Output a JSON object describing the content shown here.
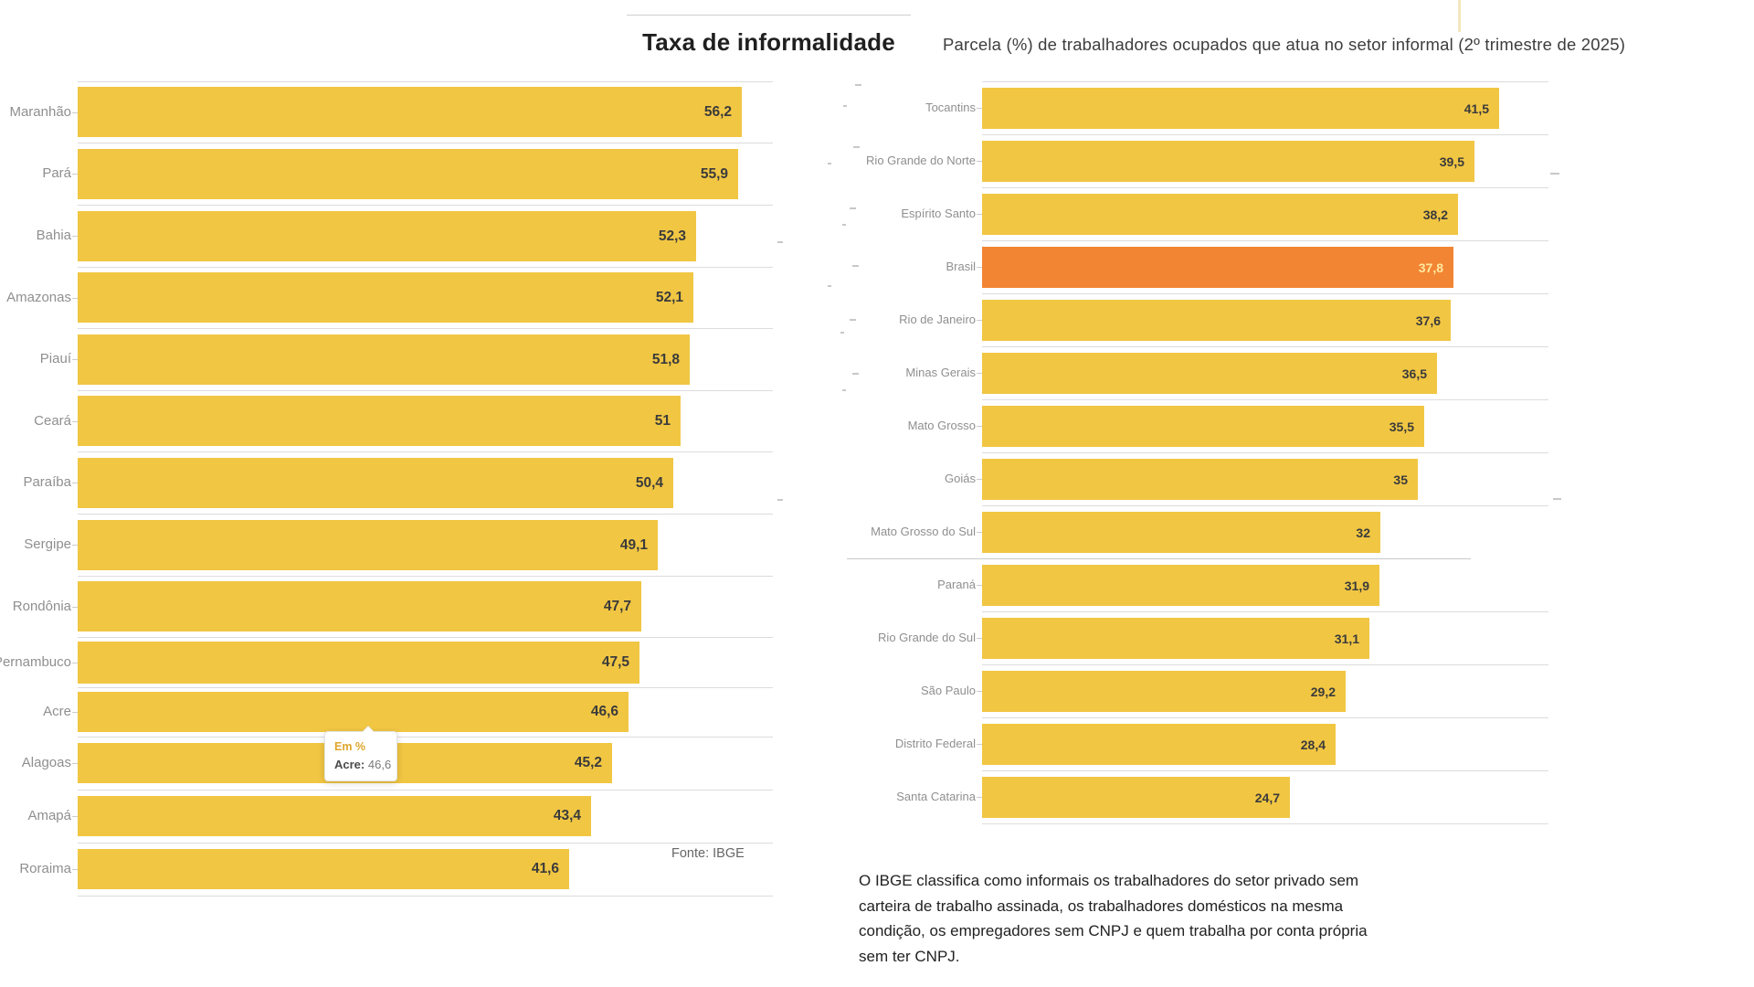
{
  "header": {
    "title": "Taxa de informalidade",
    "subtitle": "Parcela (%) de trabalhadores ocupados que atua no setor informal (2º trimestre de 2025)"
  },
  "source": "Fonte: IBGE",
  "note": "O IBGE classifica como informais os trabalhadores do setor privado sem carteira de trabalho assinada, os trabalhadores domésticos na mesma condição, os empregadores sem CNPJ e quem trabalha por conta própria sem ter CNPJ.",
  "tooltip": {
    "series": "Em %",
    "label": "Acre:",
    "value": "46,6"
  },
  "colors": {
    "bar": "#F1C643",
    "highlight_bar": "#F28534",
    "value_text": "#3b3b3b",
    "highlight_value_text": "#FFE9A0",
    "category_text": "#8f8f8f",
    "gridline": "#dcdcdc"
  },
  "chart_data": {
    "type": "bar",
    "orientation": "horizontal",
    "title": "Taxa de informalidade",
    "subtitle": "Parcela (%) de trabalhadores ocupados que atua no setor informal (2º trimestre de 2025)",
    "unit": "%",
    "grid": true,
    "legend": false,
    "source": "Fonte: IBGE",
    "highlight_category": "Brasil",
    "panels": [
      {
        "xlim": [
          0,
          58.8
        ],
        "categories": [
          "Maranhão",
          "Pará",
          "Bahia",
          "Amazonas",
          "Piauí",
          "Ceará",
          "Paraíba",
          "Sergipe",
          "Rondônia",
          "Pernambuco",
          "Acre",
          "Alagoas",
          "Amapá",
          "Roraima"
        ],
        "values": [
          56.2,
          55.9,
          52.3,
          52.1,
          51.8,
          51,
          50.4,
          49.1,
          47.7,
          47.5,
          46.6,
          45.2,
          43.4,
          41.6
        ],
        "display_values": [
          "56,2",
          "55,9",
          "52,3",
          "52,1",
          "51,8",
          "51",
          "50,4",
          "49,1",
          "47,7",
          "47,5",
          "46,6",
          "45,2",
          "43,4",
          "41,6"
        ]
      },
      {
        "xlim": [
          0,
          45.5
        ],
        "categories": [
          "Tocantins",
          "Rio Grande do Norte",
          "Espírito Santo",
          "Brasil",
          "Rio de Janeiro",
          "Minas Gerais",
          "Mato Grosso",
          "Goiás",
          "Mato Grosso do Sul",
          "Paraná",
          "Rio Grande do Sul",
          "São Paulo",
          "Distrito Federal",
          "Santa Catarina"
        ],
        "values": [
          41.5,
          39.5,
          38.2,
          37.8,
          37.6,
          36.5,
          35.5,
          35,
          32,
          31.9,
          31.1,
          29.2,
          28.4,
          24.7
        ],
        "display_values": [
          "41,5",
          "39,5",
          "38,2",
          "37,8",
          "37,6",
          "36,5",
          "35,5",
          "35",
          "32",
          "31,9",
          "31,1",
          "29,2",
          "28,4",
          "24,7"
        ]
      }
    ]
  }
}
